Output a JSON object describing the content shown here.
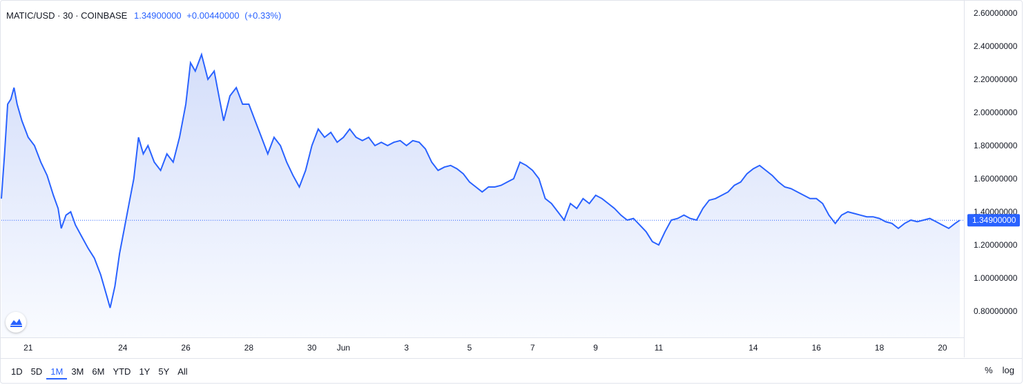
{
  "header": {
    "symbol": "MATIC/USD",
    "interval": "30",
    "exchange": "COINBASE",
    "last": "1.34900000",
    "change": "+0.00440000",
    "change_pct": "(+0.33%)"
  },
  "time_ranges": [
    {
      "label": "1D",
      "active": false
    },
    {
      "label": "5D",
      "active": false
    },
    {
      "label": "1M",
      "active": true
    },
    {
      "label": "3M",
      "active": false
    },
    {
      "label": "6M",
      "active": false
    },
    {
      "label": "YTD",
      "active": false
    },
    {
      "label": "1Y",
      "active": false
    },
    {
      "label": "5Y",
      "active": false
    },
    {
      "label": "All",
      "active": false
    }
  ],
  "options": {
    "percent_label": "%",
    "log_label": "log"
  },
  "colors": {
    "line": "#2962ff",
    "fill_top": "#d4defa",
    "fill_bottom": "#f9fbff",
    "axis_text": "#131722"
  },
  "chart_data": {
    "type": "area",
    "ylim": [
      0.7,
      2.65
    ],
    "y_ticks": [
      "2.60000000",
      "2.40000000",
      "2.20000000",
      "2.00000000",
      "1.80000000",
      "1.60000000",
      "1.40000000",
      "1.20000000",
      "1.00000000",
      "0.80000000"
    ],
    "y_tick_values": [
      2.6,
      2.4,
      2.2,
      2.0,
      1.8,
      1.6,
      1.4,
      1.2,
      1.0,
      0.8
    ],
    "x_ticks": [
      {
        "label": "21",
        "day": 1
      },
      {
        "label": "24",
        "day": 4
      },
      {
        "label": "26",
        "day": 6
      },
      {
        "label": "28",
        "day": 8
      },
      {
        "label": "30",
        "day": 10
      },
      {
        "label": "Jun",
        "day": 11
      },
      {
        "label": "3",
        "day": 13
      },
      {
        "label": "5",
        "day": 15
      },
      {
        "label": "7",
        "day": 17
      },
      {
        "label": "9",
        "day": 19
      },
      {
        "label": "11",
        "day": 21
      },
      {
        "label": "14",
        "day": 24
      },
      {
        "label": "16",
        "day": 26
      },
      {
        "label": "18",
        "day": 28
      },
      {
        "label": "20",
        "day": 30
      }
    ],
    "x_range_days": [
      0.15,
      30.55
    ],
    "last_price": 1.349,
    "last_price_label": "1.34900000",
    "series_points": [
      [
        0.15,
        1.48
      ],
      [
        0.25,
        1.75
      ],
      [
        0.35,
        2.05
      ],
      [
        0.45,
        2.08
      ],
      [
        0.55,
        2.15
      ],
      [
        0.65,
        2.05
      ],
      [
        0.8,
        1.95
      ],
      [
        1.0,
        1.85
      ],
      [
        1.2,
        1.8
      ],
      [
        1.4,
        1.7
      ],
      [
        1.6,
        1.62
      ],
      [
        1.8,
        1.5
      ],
      [
        1.95,
        1.42
      ],
      [
        2.05,
        1.3
      ],
      [
        2.2,
        1.38
      ],
      [
        2.35,
        1.4
      ],
      [
        2.5,
        1.32
      ],
      [
        2.7,
        1.25
      ],
      [
        2.9,
        1.18
      ],
      [
        3.1,
        1.12
      ],
      [
        3.3,
        1.02
      ],
      [
        3.45,
        0.92
      ],
      [
        3.6,
        0.82
      ],
      [
        3.75,
        0.95
      ],
      [
        3.9,
        1.15
      ],
      [
        4.05,
        1.3
      ],
      [
        4.2,
        1.45
      ],
      [
        4.35,
        1.6
      ],
      [
        4.5,
        1.85
      ],
      [
        4.65,
        1.75
      ],
      [
        4.8,
        1.8
      ],
      [
        5.0,
        1.7
      ],
      [
        5.2,
        1.65
      ],
      [
        5.4,
        1.75
      ],
      [
        5.6,
        1.7
      ],
      [
        5.8,
        1.85
      ],
      [
        6.0,
        2.05
      ],
      [
        6.15,
        2.3
      ],
      [
        6.3,
        2.25
      ],
      [
        6.5,
        2.35
      ],
      [
        6.7,
        2.2
      ],
      [
        6.9,
        2.25
      ],
      [
        7.05,
        2.1
      ],
      [
        7.2,
        1.95
      ],
      [
        7.4,
        2.1
      ],
      [
        7.6,
        2.15
      ],
      [
        7.8,
        2.05
      ],
      [
        8.0,
        2.05
      ],
      [
        8.2,
        1.95
      ],
      [
        8.4,
        1.85
      ],
      [
        8.6,
        1.75
      ],
      [
        8.8,
        1.85
      ],
      [
        9.0,
        1.8
      ],
      [
        9.2,
        1.7
      ],
      [
        9.4,
        1.62
      ],
      [
        9.6,
        1.55
      ],
      [
        9.8,
        1.65
      ],
      [
        10.0,
        1.8
      ],
      [
        10.2,
        1.9
      ],
      [
        10.4,
        1.85
      ],
      [
        10.6,
        1.88
      ],
      [
        10.8,
        1.82
      ],
      [
        11.0,
        1.85
      ],
      [
        11.2,
        1.9
      ],
      [
        11.4,
        1.85
      ],
      [
        11.6,
        1.83
      ],
      [
        11.8,
        1.85
      ],
      [
        12.0,
        1.8
      ],
      [
        12.2,
        1.82
      ],
      [
        12.4,
        1.8
      ],
      [
        12.6,
        1.82
      ],
      [
        12.8,
        1.83
      ],
      [
        13.0,
        1.8
      ],
      [
        13.2,
        1.83
      ],
      [
        13.4,
        1.82
      ],
      [
        13.6,
        1.78
      ],
      [
        13.8,
        1.7
      ],
      [
        14.0,
        1.65
      ],
      [
        14.2,
        1.67
      ],
      [
        14.4,
        1.68
      ],
      [
        14.6,
        1.66
      ],
      [
        14.8,
        1.63
      ],
      [
        15.0,
        1.58
      ],
      [
        15.2,
        1.55
      ],
      [
        15.4,
        1.52
      ],
      [
        15.6,
        1.55
      ],
      [
        15.8,
        1.55
      ],
      [
        16.0,
        1.56
      ],
      [
        16.2,
        1.58
      ],
      [
        16.4,
        1.6
      ],
      [
        16.6,
        1.7
      ],
      [
        16.8,
        1.68
      ],
      [
        17.0,
        1.65
      ],
      [
        17.2,
        1.6
      ],
      [
        17.4,
        1.48
      ],
      [
        17.6,
        1.45
      ],
      [
        17.8,
        1.4
      ],
      [
        18.0,
        1.35
      ],
      [
        18.2,
        1.45
      ],
      [
        18.4,
        1.42
      ],
      [
        18.6,
        1.48
      ],
      [
        18.8,
        1.45
      ],
      [
        19.0,
        1.5
      ],
      [
        19.2,
        1.48
      ],
      [
        19.4,
        1.45
      ],
      [
        19.6,
        1.42
      ],
      [
        19.8,
        1.38
      ],
      [
        20.0,
        1.35
      ],
      [
        20.2,
        1.36
      ],
      [
        20.4,
        1.32
      ],
      [
        20.6,
        1.28
      ],
      [
        20.8,
        1.22
      ],
      [
        21.0,
        1.2
      ],
      [
        21.2,
        1.28
      ],
      [
        21.4,
        1.35
      ],
      [
        21.6,
        1.36
      ],
      [
        21.8,
        1.38
      ],
      [
        22.0,
        1.36
      ],
      [
        22.2,
        1.35
      ],
      [
        22.4,
        1.42
      ],
      [
        22.6,
        1.47
      ],
      [
        22.8,
        1.48
      ],
      [
        23.0,
        1.5
      ],
      [
        23.2,
        1.52
      ],
      [
        23.4,
        1.56
      ],
      [
        23.6,
        1.58
      ],
      [
        23.8,
        1.63
      ],
      [
        24.0,
        1.66
      ],
      [
        24.2,
        1.68
      ],
      [
        24.4,
        1.65
      ],
      [
        24.6,
        1.62
      ],
      [
        24.8,
        1.58
      ],
      [
        25.0,
        1.55
      ],
      [
        25.2,
        1.54
      ],
      [
        25.4,
        1.52
      ],
      [
        25.6,
        1.5
      ],
      [
        25.8,
        1.48
      ],
      [
        26.0,
        1.48
      ],
      [
        26.2,
        1.45
      ],
      [
        26.4,
        1.38
      ],
      [
        26.6,
        1.33
      ],
      [
        26.8,
        1.38
      ],
      [
        27.0,
        1.4
      ],
      [
        27.2,
        1.39
      ],
      [
        27.4,
        1.38
      ],
      [
        27.6,
        1.37
      ],
      [
        27.8,
        1.37
      ],
      [
        28.0,
        1.36
      ],
      [
        28.2,
        1.34
      ],
      [
        28.4,
        1.33
      ],
      [
        28.6,
        1.3
      ],
      [
        28.8,
        1.33
      ],
      [
        29.0,
        1.35
      ],
      [
        29.2,
        1.34
      ],
      [
        29.4,
        1.35
      ],
      [
        29.6,
        1.36
      ],
      [
        29.8,
        1.34
      ],
      [
        30.0,
        1.32
      ],
      [
        30.2,
        1.3
      ],
      [
        30.4,
        1.33
      ],
      [
        30.55,
        1.349
      ]
    ]
  }
}
